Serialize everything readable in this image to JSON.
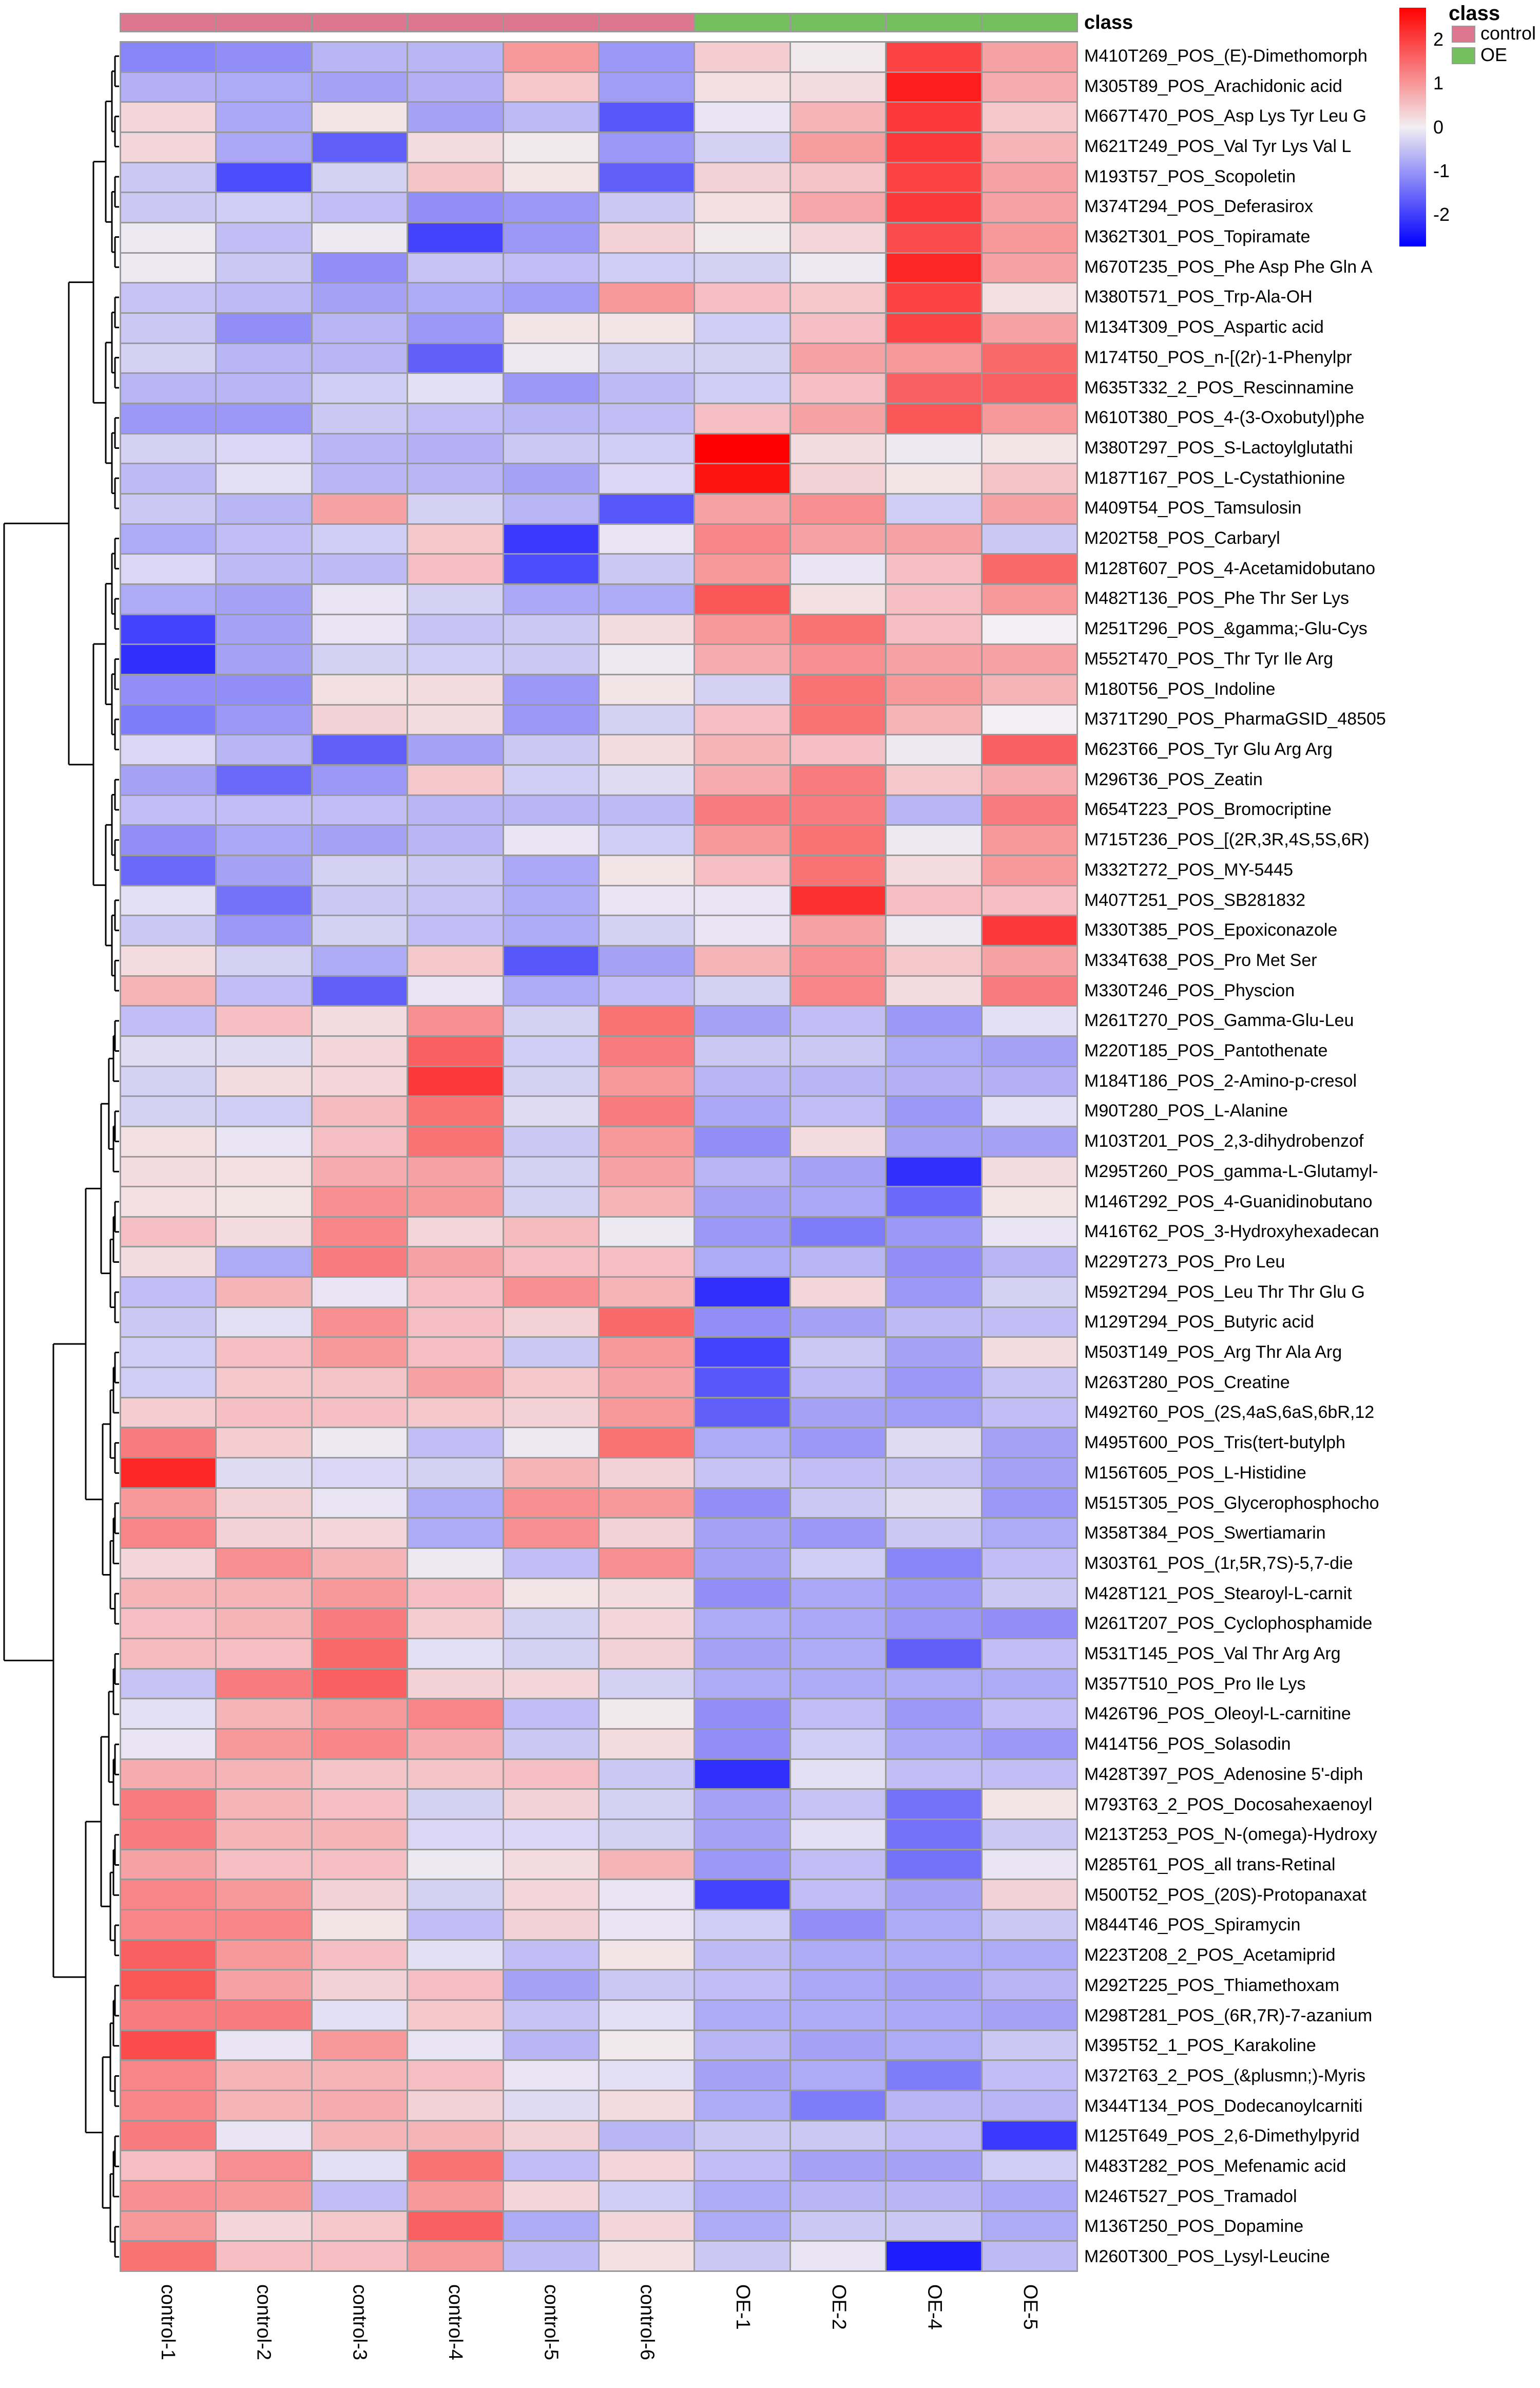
{
  "annotation_label": "class",
  "legend": {
    "class_title": "class",
    "items": [
      {
        "label": "control",
        "color": "#DD7790"
      },
      {
        "label": "OE",
        "color": "#74C05E"
      }
    ],
    "colorbar_ticks": [
      2,
      1,
      0,
      -1,
      -2
    ]
  },
  "chart_data": {
    "type": "heatmap",
    "title": "",
    "xlabel": "",
    "ylabel": "",
    "grid": true,
    "legend_position": "top-right",
    "value_range": [
      -2.5,
      2.5
    ],
    "colormap": {
      "negative": "#0000FF",
      "zero": "#F2EEF2",
      "positive": "#FF0000"
    },
    "grid_line_color": "#9A9A9A",
    "column_annotation": {
      "name": "class",
      "groups": [
        "control",
        "control",
        "control",
        "control",
        "control",
        "control",
        "OE",
        "OE",
        "OE",
        "OE"
      ],
      "colors": {
        "control": "#DD7790",
        "OE": "#74C05E"
      }
    },
    "row_dendrogram": {
      "shown": true,
      "main_split_after_row_index": 32
    },
    "columns": [
      "control-1",
      "control-2",
      "control-3",
      "control-4",
      "control-5",
      "control-6",
      "OE-1",
      "OE-2",
      "OE-4",
      "OE-5"
    ],
    "rows": [
      "M410T269_POS_(E)-Dimethomorph",
      "M305T89_POS_Arachidonic acid",
      "M667T470_POS_Asp Lys Tyr Leu G",
      "M621T249_POS_Val Tyr Lys Val L",
      "M193T57_POS_Scopoletin",
      "M374T294_POS_Deferasirox",
      "M362T301_POS_Topiramate",
      "M670T235_POS_Phe Asp Phe Gln A",
      "M380T571_POS_Trp-Ala-OH",
      "M134T309_POS_Aspartic acid",
      "M174T50_POS_n-[(2r)-1-Phenylpr",
      "M635T332_2_POS_Rescinnamine",
      "M610T380_POS_4-(3-Oxobutyl)phe",
      "M380T297_POS_S-Lactoylglutathi",
      "M187T167_POS_L-Cystathionine",
      "M409T54_POS_Tamsulosin",
      "M202T58_POS_Carbaryl",
      "M128T607_POS_4-Acetamidobutano",
      "M482T136_POS_Phe Thr Ser Lys",
      "M251T296_POS_&gamma;-Glu-Cys",
      "M552T470_POS_Thr Tyr Ile Arg",
      "M180T56_POS_Indoline",
      "M371T290_POS_PharmaGSID_48505",
      "M623T66_POS_Tyr Glu Arg Arg",
      "M296T36_POS_Zeatin",
      "M654T223_POS_Bromocriptine",
      "M715T236_POS_[(2R,3R,4S,5S,6R)",
      "M332T272_POS_MY-5445",
      "M407T251_POS_SB281832",
      "M330T385_POS_Epoxiconazole",
      "M334T638_POS_Pro Met Ser",
      "M330T246_POS_Physcion",
      "M261T270_POS_Gamma-Glu-Leu",
      "M220T185_POS_Pantothenate",
      "M184T186_POS_2-Amino-p-cresol",
      "M90T280_POS_L-Alanine",
      "M103T201_POS_2,3-dihydrobenzof",
      "M295T260_POS_gamma-L-Glutamyl-",
      "M146T292_POS_4-Guanidinobutano",
      "M416T62_POS_3-Hydroxyhexadecan",
      "M229T273_POS_Pro Leu",
      "M592T294_POS_Leu Thr Thr Glu G",
      "M129T294_POS_Butyric acid",
      "M503T149_POS_Arg Thr Ala Arg",
      "M263T280_POS_Creatine",
      "M492T60_POS_(2S,4aS,6aS,6bR,12",
      "M495T600_POS_Tris(tert-butylph",
      "M156T605_POS_L-Histidine",
      "M515T305_POS_Glycerophosphocho",
      "M358T384_POS_Swertiamarin",
      "M303T61_POS_(1r,5R,7S)-5,7-die",
      "M428T121_POS_Stearoyl-L-carnit",
      "M261T207_POS_Cyclophosphamide",
      "M531T145_POS_Val Thr Arg Arg",
      "M357T510_POS_Pro Ile Lys",
      "M426T96_POS_Oleoyl-L-carnitine",
      "M414T56_POS_Solasodin",
      "M428T397_POS_Adenosine 5'-diph",
      "M793T63_2_POS_Docosahexaenoyl",
      "M213T253_POS_N-(omega)-Hydroxy",
      "M285T61_POS_all trans-Retinal",
      "M500T52_POS_(20S)-Protopanaxat",
      "M844T46_POS_Spiramycin",
      "M223T208_2_POS_Acetamiprid",
      "M292T225_POS_Thiamethoxam",
      "M298T281_POS_(6R,7R)-7-azanium",
      "M395T52_1_POS_Karakoline",
      "M372T63_2_POS_(&plusmn;)-Myris",
      "M344T134_POS_Dodecanoylcarniti",
      "M125T649_POS_2,6-Dimethylpyrid",
      "M483T282_POS_Mefenamic acid",
      "M246T527_POS_Tramadol",
      "M136T250_POS_Dopamine",
      "M260T300_POS_Lysyl-Leucine"
    ],
    "values": [
      [
        -1.1,
        -1.0,
        -0.6,
        -0.6,
        0.9,
        -0.9,
        0.35,
        0.05,
        1.8,
        0.8
      ],
      [
        -0.65,
        -0.7,
        -0.8,
        -0.65,
        0.4,
        -0.85,
        0.15,
        0.2,
        2.2,
        0.7
      ],
      [
        0.25,
        -0.75,
        0.1,
        -0.8,
        -0.55,
        -1.6,
        -0.1,
        0.6,
        1.9,
        0.4
      ],
      [
        0.25,
        -0.75,
        -1.5,
        0.2,
        0.05,
        -0.9,
        -0.3,
        0.85,
        1.9,
        0.6
      ],
      [
        -0.4,
        -1.7,
        -0.3,
        0.45,
        0.1,
        -1.5,
        0.3,
        0.45,
        1.8,
        0.8
      ],
      [
        -0.4,
        -0.35,
        -0.5,
        -1.0,
        -0.9,
        -0.4,
        0.15,
        0.75,
        1.9,
        0.8
      ],
      [
        -0.05,
        -0.5,
        -0.05,
        -1.8,
        -0.9,
        0.3,
        0.05,
        0.25,
        1.7,
        0.9
      ],
      [
        -0.05,
        -0.4,
        -1.0,
        -0.45,
        -0.5,
        -0.35,
        -0.3,
        -0.05,
        2.1,
        0.8
      ],
      [
        -0.45,
        -0.55,
        -0.8,
        -0.7,
        -0.85,
        0.9,
        0.5,
        0.4,
        1.8,
        0.15
      ],
      [
        -0.4,
        -1.0,
        -0.6,
        -0.9,
        0.1,
        0.1,
        -0.35,
        0.5,
        1.8,
        0.8
      ],
      [
        -0.3,
        -0.6,
        -0.6,
        -1.5,
        -0.05,
        -0.3,
        -0.3,
        0.8,
        0.9,
        1.4
      ],
      [
        -0.6,
        -0.6,
        -0.35,
        -0.15,
        -0.9,
        -0.55,
        -0.35,
        0.5,
        1.5,
        1.5
      ],
      [
        -0.9,
        -0.9,
        -0.4,
        -0.5,
        -0.6,
        -0.5,
        0.5,
        0.8,
        1.6,
        0.9
      ],
      [
        -0.3,
        -0.25,
        -0.6,
        -0.65,
        -0.4,
        -0.35,
        2.5,
        0.2,
        -0.05,
        0.1
      ],
      [
        -0.55,
        -0.15,
        -0.6,
        -0.6,
        -0.8,
        -0.25,
        2.3,
        0.3,
        0.1,
        0.45
      ],
      [
        -0.4,
        -0.6,
        0.8,
        -0.3,
        -0.6,
        -1.6,
        0.8,
        1.0,
        -0.35,
        0.8
      ],
      [
        -0.7,
        -0.5,
        -0.35,
        0.4,
        -1.9,
        -0.1,
        1.1,
        0.8,
        0.8,
        -0.4
      ],
      [
        -0.25,
        -0.55,
        -0.55,
        0.5,
        -1.7,
        -0.4,
        0.9,
        -0.1,
        0.5,
        1.4
      ],
      [
        -0.7,
        -0.8,
        -0.1,
        -0.3,
        -0.75,
        -0.7,
        1.6,
        0.15,
        0.5,
        0.9
      ],
      [
        -1.8,
        -0.8,
        -0.1,
        -0.45,
        -0.4,
        0.2,
        0.9,
        1.3,
        0.5,
        0.0
      ],
      [
        -2.0,
        -0.8,
        -0.3,
        -0.35,
        -0.4,
        -0.05,
        0.7,
        1.0,
        0.8,
        0.8
      ],
      [
        -1.0,
        -1.0,
        0.15,
        0.2,
        -0.9,
        0.1,
        -0.3,
        1.3,
        0.9,
        0.6
      ],
      [
        -1.2,
        -0.9,
        0.3,
        0.2,
        -0.9,
        -0.3,
        0.5,
        1.3,
        0.6,
        0.0
      ],
      [
        -0.25,
        -0.6,
        -1.5,
        -0.8,
        -0.4,
        0.2,
        0.6,
        0.5,
        -0.05,
        1.5
      ],
      [
        -0.8,
        -1.4,
        -0.9,
        0.4,
        -0.35,
        -0.2,
        0.7,
        1.2,
        0.4,
        0.7
      ],
      [
        -0.5,
        -0.5,
        -0.5,
        -0.6,
        -0.6,
        -0.55,
        1.2,
        1.2,
        -0.6,
        1.2
      ],
      [
        -1.0,
        -0.75,
        -0.8,
        -0.6,
        -0.1,
        -0.35,
        0.9,
        1.3,
        -0.05,
        0.9
      ],
      [
        -1.4,
        -0.8,
        -0.3,
        -0.4,
        -0.75,
        0.1,
        0.5,
        1.3,
        0.2,
        0.9
      ],
      [
        -0.15,
        -1.3,
        -0.4,
        -0.45,
        -0.7,
        -0.1,
        -0.1,
        2.0,
        0.5,
        0.5
      ],
      [
        -0.4,
        -0.9,
        -0.3,
        -0.5,
        -0.7,
        -0.3,
        -0.1,
        0.8,
        -0.05,
        1.9
      ],
      [
        0.2,
        -0.3,
        -0.7,
        0.4,
        -1.6,
        -0.8,
        0.6,
        1.0,
        0.4,
        0.8
      ],
      [
        0.6,
        -0.5,
        -1.5,
        -0.1,
        -0.7,
        -0.5,
        -0.3,
        1.1,
        0.2,
        1.2
      ],
      [
        -0.5,
        0.5,
        0.2,
        1.0,
        -0.3,
        1.3,
        -0.8,
        -0.5,
        -0.9,
        -0.15
      ],
      [
        -0.2,
        -0.2,
        0.25,
        1.5,
        -0.35,
        1.2,
        -0.4,
        -0.4,
        -0.7,
        -0.8
      ],
      [
        -0.3,
        0.2,
        0.25,
        1.9,
        -0.3,
        0.9,
        -0.6,
        -0.6,
        -0.65,
        -0.65
      ],
      [
        -0.3,
        -0.35,
        0.55,
        1.3,
        -0.2,
        1.2,
        -0.75,
        -0.5,
        -0.9,
        -0.15
      ],
      [
        0.15,
        -0.1,
        0.5,
        1.3,
        -0.4,
        0.9,
        -1.0,
        0.2,
        -0.8,
        -0.8
      ],
      [
        0.2,
        0.15,
        0.7,
        0.8,
        -0.3,
        0.8,
        -0.6,
        -0.8,
        -2.0,
        0.2
      ],
      [
        0.15,
        0.1,
        1.0,
        0.9,
        -0.3,
        0.6,
        -0.8,
        -0.75,
        -1.4,
        0.1
      ],
      [
        0.5,
        0.2,
        1.1,
        0.25,
        0.55,
        -0.05,
        -0.9,
        -1.2,
        -0.9,
        -0.1
      ],
      [
        0.2,
        -0.7,
        1.2,
        0.8,
        0.5,
        0.5,
        -0.7,
        -0.6,
        -1.0,
        -0.6
      ],
      [
        -0.5,
        0.6,
        -0.1,
        0.5,
        1.0,
        0.6,
        -2.0,
        0.25,
        -0.9,
        -0.3
      ],
      [
        -0.4,
        -0.15,
        1.0,
        0.5,
        0.3,
        1.4,
        -1.0,
        -0.8,
        -0.55,
        -0.5
      ],
      [
        -0.35,
        0.5,
        0.9,
        0.5,
        -0.4,
        0.9,
        -1.8,
        -0.4,
        -0.8,
        0.2
      ],
      [
        -0.35,
        0.4,
        0.45,
        0.8,
        0.4,
        0.8,
        -1.6,
        -0.55,
        -0.9,
        -0.45
      ],
      [
        0.35,
        0.5,
        0.5,
        0.4,
        0.3,
        0.9,
        -1.5,
        -0.8,
        -0.85,
        -0.5
      ],
      [
        1.2,
        0.35,
        -0.05,
        -0.5,
        -0.05,
        1.3,
        -0.7,
        -0.9,
        -0.2,
        -0.8
      ],
      [
        2.1,
        -0.2,
        -0.25,
        -0.3,
        0.6,
        0.3,
        -0.45,
        -0.5,
        -0.45,
        -0.8
      ],
      [
        0.9,
        0.3,
        -0.1,
        -0.7,
        1.0,
        0.9,
        -1.0,
        -0.4,
        -0.2,
        -0.9
      ],
      [
        1.1,
        0.3,
        0.25,
        -0.7,
        1.0,
        0.3,
        -0.8,
        -0.9,
        -0.4,
        -0.7
      ],
      [
        0.25,
        1.0,
        0.6,
        -0.05,
        -0.5,
        1.0,
        -0.8,
        -0.35,
        -1.1,
        -0.5
      ],
      [
        0.6,
        0.6,
        0.9,
        0.5,
        0.1,
        0.2,
        -1.0,
        -0.75,
        -0.9,
        -0.4
      ],
      [
        0.5,
        0.6,
        1.2,
        0.35,
        -0.3,
        0.25,
        -0.7,
        -0.75,
        -0.9,
        -1.0
      ],
      [
        0.55,
        0.5,
        1.4,
        -0.15,
        -0.3,
        0.3,
        -0.8,
        -0.7,
        -1.5,
        -0.5
      ],
      [
        -0.45,
        1.2,
        1.5,
        0.3,
        0.25,
        -0.3,
        -0.7,
        -0.7,
        -0.7,
        -0.7
      ],
      [
        -0.15,
        0.6,
        0.9,
        1.1,
        -0.5,
        0.05,
        -1.0,
        -0.5,
        -0.9,
        -0.5
      ],
      [
        -0.1,
        0.9,
        1.1,
        0.7,
        -0.4,
        0.2,
        -1.0,
        -0.35,
        -0.75,
        -0.9
      ],
      [
        0.7,
        0.6,
        0.45,
        0.45,
        0.5,
        -0.4,
        -2.0,
        -0.15,
        -0.5,
        -0.5
      ],
      [
        1.2,
        0.6,
        0.5,
        -0.3,
        0.3,
        -0.3,
        -0.8,
        -0.45,
        -1.3,
        0.1
      ],
      [
        1.2,
        0.6,
        0.6,
        -0.25,
        -0.25,
        -0.3,
        -0.8,
        -0.15,
        -1.3,
        -0.4
      ],
      [
        0.8,
        0.5,
        0.5,
        -0.05,
        0.2,
        0.6,
        -0.9,
        -0.5,
        -1.3,
        -0.1
      ],
      [
        1.1,
        0.9,
        0.3,
        -0.3,
        0.25,
        -0.1,
        -1.8,
        -0.5,
        -0.8,
        0.3
      ],
      [
        1.1,
        1.1,
        0.1,
        -0.5,
        0.3,
        -0.1,
        -0.35,
        -1.0,
        -0.7,
        -0.4
      ],
      [
        1.5,
        0.9,
        0.5,
        -0.15,
        -0.5,
        0.1,
        -0.55,
        -0.7,
        -0.7,
        -0.7
      ],
      [
        1.6,
        0.8,
        0.3,
        0.5,
        -0.8,
        -0.4,
        -0.5,
        -0.75,
        -0.8,
        -0.6
      ],
      [
        1.2,
        1.2,
        -0.15,
        0.4,
        -0.45,
        -0.15,
        -0.7,
        -0.7,
        -0.75,
        -0.8
      ],
      [
        1.7,
        -0.1,
        0.9,
        -0.1,
        -0.6,
        0.05,
        -0.6,
        -0.8,
        -0.7,
        -0.4
      ],
      [
        1.1,
        0.6,
        0.6,
        0.5,
        -0.1,
        -0.15,
        -0.8,
        -0.7,
        -1.2,
        -0.5
      ],
      [
        1.1,
        0.6,
        0.7,
        0.3,
        -0.2,
        0.2,
        -0.7,
        -1.2,
        -0.6,
        -0.6
      ],
      [
        1.2,
        -0.1,
        0.6,
        0.6,
        0.3,
        -0.6,
        -0.4,
        -0.4,
        -0.5,
        -1.9
      ],
      [
        0.5,
        1.0,
        -0.15,
        1.3,
        -0.5,
        0.25,
        -0.5,
        -0.8,
        -0.8,
        -0.35
      ],
      [
        1.0,
        0.9,
        -0.5,
        0.9,
        0.25,
        -0.35,
        -0.7,
        -0.6,
        -0.6,
        -0.75
      ],
      [
        0.9,
        0.25,
        0.4,
        1.5,
        -0.7,
        0.25,
        -0.7,
        -0.4,
        -0.4,
        -0.7
      ],
      [
        1.3,
        0.5,
        0.5,
        0.9,
        -0.55,
        0.15,
        -0.4,
        -0.1,
        -2.2,
        -0.55
      ]
    ]
  }
}
